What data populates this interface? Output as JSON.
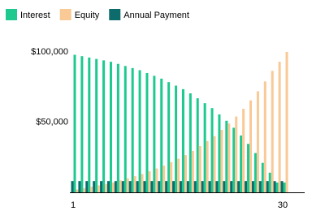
{
  "chart_data": {
    "type": "bar",
    "categories": [
      "1",
      null,
      null,
      null,
      null,
      null,
      null,
      null,
      null,
      null,
      null,
      null,
      null,
      null,
      null,
      null,
      null,
      null,
      null,
      null,
      null,
      null,
      null,
      null,
      null,
      null,
      null,
      null,
      null,
      "30"
    ],
    "series": [
      {
        "name": "Interest",
        "color": "#1ec990",
        "values": [
          98000,
          97000,
          96000,
          95000,
          94000,
          93000,
          91500,
          90000,
          88500,
          87000,
          85000,
          83000,
          81000,
          78500,
          76000,
          73500,
          70500,
          67000,
          63500,
          60000,
          55500,
          51000,
          46000,
          40500,
          34500,
          28000,
          21000,
          14000,
          7000,
          7000
        ]
      },
      {
        "name": "Equity",
        "color": "#f9c996",
        "values": [
          2000,
          3000,
          4000,
          5000,
          6000,
          7000,
          8500,
          10000,
          11500,
          13000,
          15000,
          17000,
          19000,
          21500,
          24000,
          26500,
          29500,
          33000,
          36500,
          40000,
          44500,
          49000,
          54000,
          59500,
          65500,
          72000,
          79000,
          86500,
          93000,
          100000
        ]
      },
      {
        "name": "Annual Payment",
        "color": "#0e6b6b",
        "values": [
          8000,
          8000,
          8000,
          8000,
          8000,
          8000,
          8000,
          8000,
          8000,
          8000,
          8000,
          8000,
          8000,
          8000,
          8000,
          8000,
          8000,
          8000,
          8000,
          8000,
          8000,
          8000,
          8000,
          8000,
          8000,
          8000,
          8000,
          8000,
          8000,
          8000
        ]
      }
    ],
    "ylim": [
      0,
      100000
    ],
    "yticks": [
      {
        "value": 50000,
        "label": "$50,000"
      },
      {
        "value": 100000,
        "label": "$100,000"
      }
    ],
    "grid": false,
    "legend": "top"
  }
}
